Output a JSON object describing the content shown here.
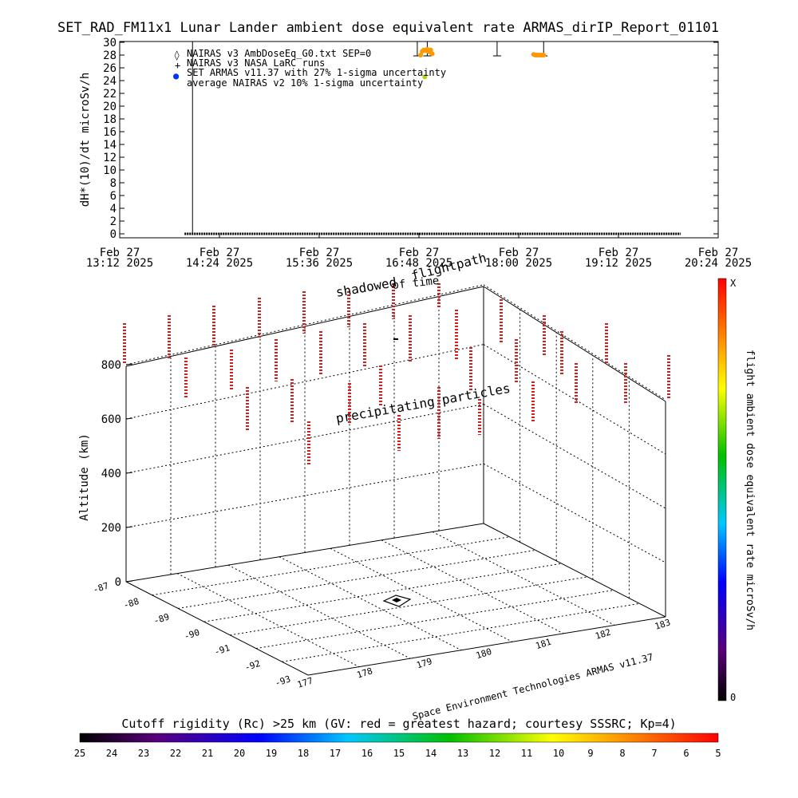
{
  "title": "SET_RAD_FM11x1  Lunar Lander ambient dose equivalent rate ARMAS_dirIP_Report_01101",
  "chart_data": [
    {
      "type": "scatter",
      "ylabel": "dH*(10)/dt microSv/h",
      "ylim": [
        0,
        30
      ],
      "yticks": [
        "0",
        "2",
        "4",
        "6",
        "8",
        "10",
        "12",
        "14",
        "16",
        "18",
        "20",
        "22",
        "24",
        "26",
        "28",
        "30"
      ],
      "xticks": [
        {
          "line1": "Feb 27",
          "line2": "13:12 2025"
        },
        {
          "line1": "Feb 27",
          "line2": "14:24 2025"
        },
        {
          "line1": "Feb 27",
          "line2": "15:36 2025"
        },
        {
          "line1": "Feb 27",
          "line2": "16:48 2025"
        },
        {
          "line1": "Feb 27",
          "line2": "18:00 2025"
        },
        {
          "line1": "Feb 27",
          "line2": "19:12 2025"
        },
        {
          "line1": "Feb 27",
          "line2": "20:24 2025"
        }
      ],
      "legend": [
        {
          "symbol": "◊",
          "label": "NAIRAS v3 AmbDoseEq_G0.txt SEP=0"
        },
        {
          "symbol": "+",
          "label": "NAIRAS v3 NASA LaRC runs"
        },
        {
          "symbol": "●",
          "label": "SET ARMAS v11.37 with 27% 1-sigma uncertainty"
        },
        {
          "symbol": "",
          "label": "average NAIRAS v2 10% 1-sigma uncertainty"
        }
      ],
      "orange_points_time_h": [
        16.82,
        16.84,
        16.86,
        16.88,
        16.9,
        16.92,
        16.94,
        16.96,
        18.18,
        18.2,
        18.22,
        18.24,
        18.26,
        18.28,
        18.3
      ],
      "orange_points_value": [
        28.0,
        28.6,
        28.8,
        28.7,
        28.9,
        28.5,
        28.8,
        28.2,
        28.1,
        28.0,
        28.0,
        28.0,
        28.0,
        28.0,
        28.0
      ],
      "green_point": {
        "time_h": 16.87,
        "value": 24.6
      },
      "errorbars_time_h": [
        16.78,
        16.9,
        17.74,
        18.3
      ],
      "baseline_from_h": 13.98,
      "baseline_to_h": 19.95
    },
    {
      "type": "scatter",
      "zlabel": "Altitude (km)",
      "zticks": [
        "0",
        "200",
        "400",
        "600",
        "800"
      ],
      "longitude_ticks": [
        "177",
        "178",
        "179",
        "180",
        "181",
        "182",
        "183"
      ],
      "latitude_ticks": [
        "-87",
        "-88",
        "-89",
        "-90",
        "-91",
        "-92",
        "-93"
      ],
      "annotations": {
        "shadowed": "shadowed",
        "flightpath": "flightpath",
        "of_time": "of time",
        "precipitating": "precipitating particles",
        "credit": "Space Environment Technologies ARMAS v11.37"
      },
      "colorbar": {
        "label": "flight ambient dose equivalent rate microSv/h",
        "top": "X",
        "bottom": "0"
      }
    }
  ],
  "bottom_bar": {
    "title": "Cutoff rigidity (Rc) >25 km (GV: red = greatest hazard; courtesy SSSRC; Kp=4)",
    "ticks": [
      "25",
      "24",
      "23",
      "22",
      "21",
      "20",
      "19",
      "18",
      "17",
      "16",
      "15",
      "14",
      "13",
      "12",
      "11",
      "10",
      "9",
      "8",
      "7",
      "6",
      "5"
    ]
  },
  "colors": {
    "orange": "#ff9900",
    "green": "#aadd00",
    "blue": "#0033ff",
    "red_marks": "#cc2222"
  }
}
